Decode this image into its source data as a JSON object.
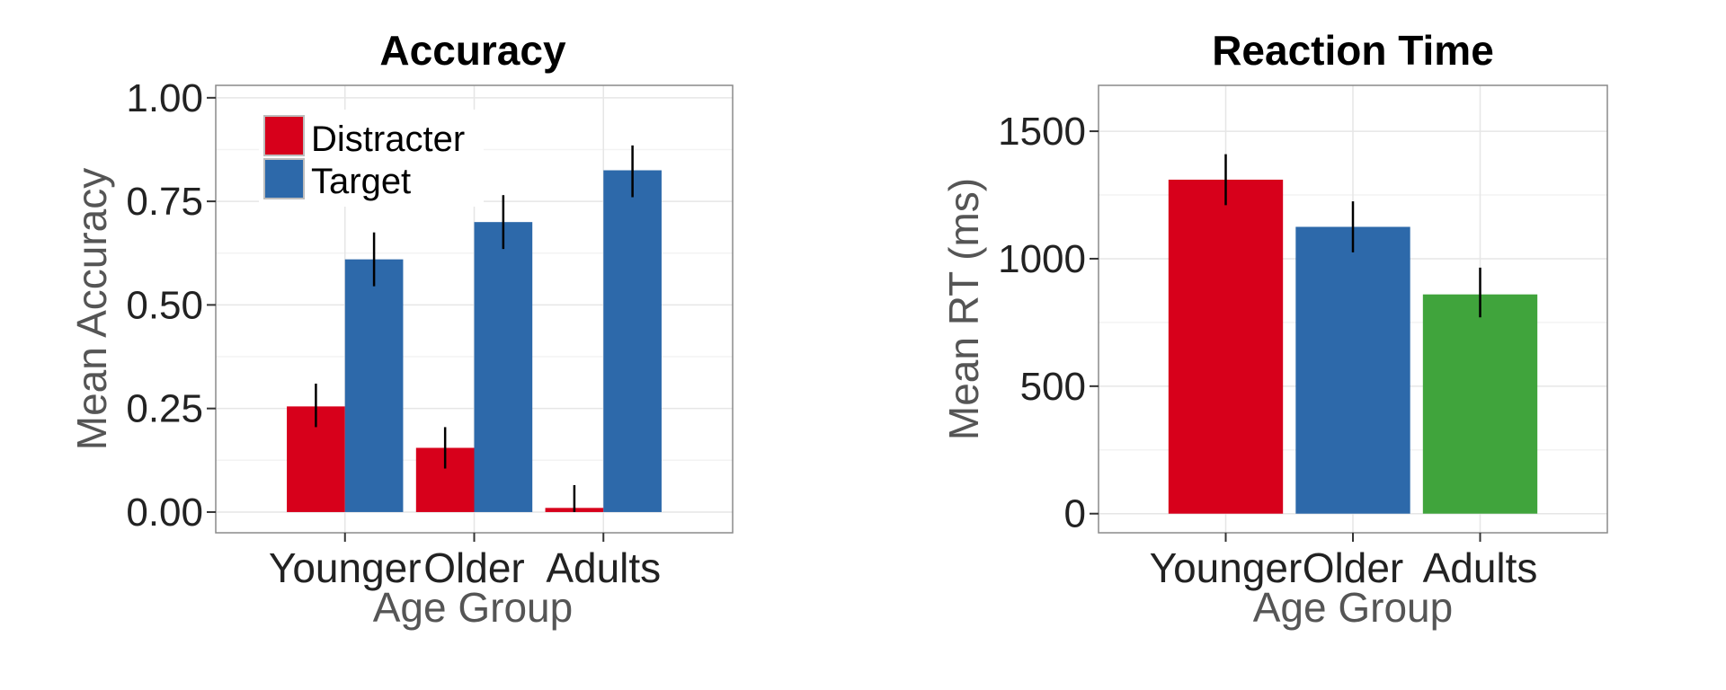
{
  "colors": {
    "distracter": "#d7001b",
    "target": "#2d69aa",
    "adults": "#40a43c",
    "axis_text": "#222222",
    "axis_title": "#555555",
    "panel_border": "#8a8a8a",
    "grid_major": "#e6e6e6",
    "grid_minor": "#f3f3f3",
    "error_bar": "#000000"
  },
  "chart_data": [
    {
      "type": "bar",
      "title": "Accuracy",
      "xlabel": "Age Group",
      "ylabel": "Mean Accuracy",
      "categories": [
        "Younger",
        "Older",
        "Adults"
      ],
      "ylim": [
        -0.05,
        1.03
      ],
      "yticks": [
        0,
        0.25,
        0.5,
        0.75,
        1.0
      ],
      "ytick_labels": [
        "0.00",
        "0.25",
        "0.50",
        "0.75",
        "1.00"
      ],
      "grid": true,
      "legend": {
        "position": "top-left",
        "entries": [
          "Distracter",
          "Target"
        ]
      },
      "series": [
        {
          "name": "Distracter",
          "color_key": "distracter",
          "values": [
            0.255,
            0.155,
            0.01
          ],
          "error_low": [
            0.205,
            0.105,
            0.0
          ],
          "error_high": [
            0.31,
            0.205,
            0.065
          ]
        },
        {
          "name": "Target",
          "color_key": "target",
          "values": [
            0.61,
            0.7,
            0.825
          ],
          "error_low": [
            0.545,
            0.635,
            0.76
          ],
          "error_high": [
            0.675,
            0.765,
            0.885
          ]
        }
      ]
    },
    {
      "type": "bar",
      "title": "Reaction Time",
      "xlabel": "Age Group",
      "ylabel": "Mean RT (ms)",
      "categories": [
        "Younger",
        "Older",
        "Adults"
      ],
      "ylim": [
        -75,
        1680
      ],
      "yticks": [
        0,
        500,
        1000,
        1500
      ],
      "ytick_labels": [
        "0",
        "500",
        "1000",
        "1500"
      ],
      "grid": true,
      "series": [
        {
          "values": [
            1310,
            1125,
            860
          ],
          "color_keys": [
            "distracter",
            "target",
            "adults"
          ],
          "error_low": [
            1210,
            1025,
            770
          ],
          "error_high": [
            1410,
            1225,
            965
          ]
        }
      ]
    }
  ]
}
